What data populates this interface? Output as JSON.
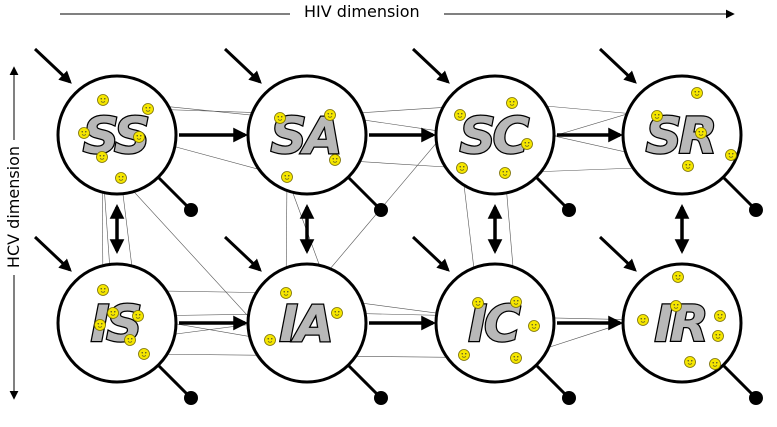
{
  "axes": {
    "hiv_label": "HIV dimension",
    "hcv_label": "HCV dimension"
  },
  "nodes": [
    {
      "id": "SS",
      "label": "SS"
    },
    {
      "id": "SA",
      "label": "SA"
    },
    {
      "id": "SC",
      "label": "SC"
    },
    {
      "id": "SR",
      "label": "SR"
    },
    {
      "id": "IS",
      "label": "IS"
    },
    {
      "id": "IA",
      "label": "IA"
    },
    {
      "id": "IC",
      "label": "IC"
    },
    {
      "id": "IR",
      "label": "IR"
    }
  ],
  "transitions": [
    {
      "from": "SS",
      "to": "SA",
      "type": "one-way"
    },
    {
      "from": "SA",
      "to": "SC",
      "type": "one-way"
    },
    {
      "from": "SC",
      "to": "SR",
      "type": "one-way"
    },
    {
      "from": "IS",
      "to": "IA",
      "type": "one-way"
    },
    {
      "from": "IA",
      "to": "IC",
      "type": "one-way"
    },
    {
      "from": "IC",
      "to": "IR",
      "type": "one-way"
    },
    {
      "from": "SS",
      "to": "IS",
      "type": "two-way"
    },
    {
      "from": "SA",
      "to": "IA",
      "type": "two-way"
    },
    {
      "from": "SC",
      "to": "IC",
      "type": "two-way"
    },
    {
      "from": "SR",
      "to": "IR",
      "type": "two-way"
    }
  ],
  "colors": {
    "individual_fill": "#f5e600",
    "individual_stroke": "#7a6f00",
    "label_fill": "#b8b8b8",
    "line": "#000000"
  }
}
